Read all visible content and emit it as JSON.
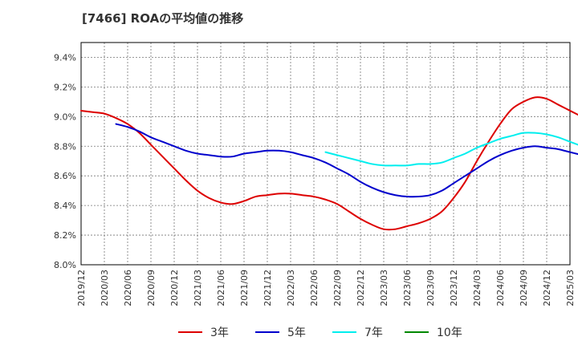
{
  "chart_data": {
    "type": "line",
    "title": "[7466]  ROAの平均値の推移",
    "xlabel": "",
    "ylabel": "",
    "x_ticks": [
      "2019/12",
      "2020/03",
      "2020/06",
      "2020/09",
      "2020/12",
      "2021/03",
      "2021/06",
      "2021/09",
      "2021/12",
      "2022/03",
      "2022/06",
      "2022/09",
      "2022/12",
      "2023/03",
      "2023/06",
      "2023/09",
      "2023/12",
      "2024/03",
      "2024/06",
      "2024/09",
      "2024/12",
      "2025/03"
    ],
    "y_ticks": [
      "8.0%",
      "8.2%",
      "8.4%",
      "8.6%",
      "8.8%",
      "9.0%",
      "9.2%",
      "9.4%"
    ],
    "ylim": [
      8.0,
      9.5
    ],
    "grid": true,
    "legend_position": "bottom",
    "series": [
      {
        "name": "3年",
        "color": "#dd0000",
        "values": [
          9.04,
          9.03,
          9.02,
          8.99,
          8.95,
          8.89,
          8.81,
          8.73,
          8.65,
          8.57,
          8.5,
          8.45,
          8.42,
          8.41,
          8.43,
          8.46,
          8.47,
          8.48,
          8.48,
          8.47,
          8.46,
          8.44,
          8.41,
          8.36,
          8.31,
          8.27,
          8.24,
          8.24,
          8.26,
          8.28,
          8.31,
          8.36,
          8.45,
          8.56,
          8.7,
          8.83,
          8.95,
          9.05,
          9.1,
          9.13,
          9.12,
          9.08,
          9.04,
          9.0,
          8.96,
          8.93
        ]
      },
      {
        "name": "5年",
        "color": "#0000cc",
        "values": [
          null,
          null,
          null,
          8.95,
          8.93,
          8.9,
          8.86,
          8.83,
          8.8,
          8.77,
          8.75,
          8.74,
          8.73,
          8.73,
          8.75,
          8.76,
          8.77,
          8.77,
          8.76,
          8.74,
          8.72,
          8.69,
          8.65,
          8.61,
          8.56,
          8.52,
          8.49,
          8.47,
          8.46,
          8.46,
          8.47,
          8.5,
          8.55,
          8.6,
          8.65,
          8.7,
          8.74,
          8.77,
          8.79,
          8.8,
          8.79,
          8.78,
          8.76,
          8.74,
          8.71,
          8.69
        ]
      },
      {
        "name": "7年",
        "color": "#00eeee",
        "values": [
          null,
          null,
          null,
          null,
          null,
          null,
          null,
          null,
          null,
          null,
          null,
          null,
          null,
          null,
          null,
          null,
          null,
          null,
          null,
          null,
          null,
          8.76,
          8.74,
          8.72,
          8.7,
          8.68,
          8.67,
          8.67,
          8.67,
          8.68,
          8.68,
          8.69,
          8.72,
          8.75,
          8.79,
          8.82,
          8.85,
          8.87,
          8.89,
          8.89,
          8.88,
          8.86,
          8.83,
          8.8,
          8.76,
          8.72
        ]
      },
      {
        "name": "10年",
        "color": "#008800",
        "values": []
      }
    ]
  }
}
